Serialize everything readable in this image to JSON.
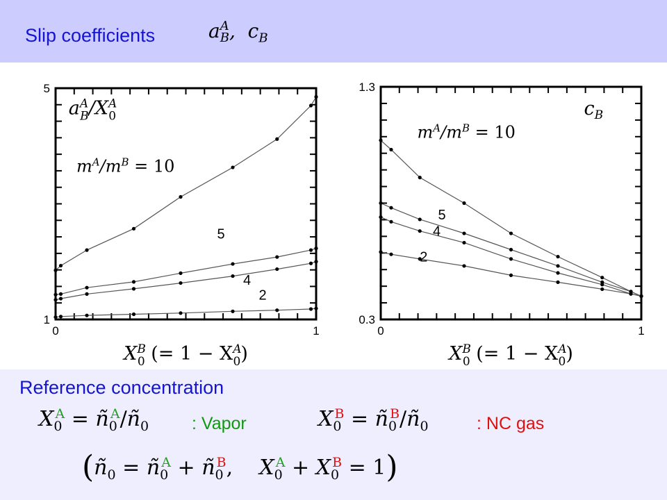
{
  "header": {
    "title": "Slip coefficients",
    "math": "a_B^A, c_B"
  },
  "chart_data": [
    {
      "type": "line",
      "label": "a_B^A / X_0^A",
      "xlabel": "X_0^B (= 1 − X_0^A)",
      "xlim": [
        0,
        1
      ],
      "ylim": [
        1,
        5
      ],
      "xticks": [
        0,
        1
      ],
      "yticks": [
        1,
        5
      ],
      "series": [
        {
          "name": "m^A/m^B = 10",
          "x": [
            0,
            0.02,
            0.12,
            0.3,
            0.48,
            0.68,
            0.85,
            0.98,
            1.0
          ],
          "y": [
            1.85,
            1.93,
            2.2,
            2.57,
            3.12,
            3.63,
            4.12,
            4.7,
            4.85
          ]
        },
        {
          "name": "5",
          "x": [
            0,
            0.02,
            0.12,
            0.3,
            0.48,
            0.68,
            0.85,
            0.98,
            1.0
          ],
          "y": [
            1.43,
            1.44,
            1.55,
            1.65,
            1.8,
            1.96,
            2.08,
            2.2,
            2.23
          ]
        },
        {
          "name": "4",
          "x": [
            0,
            0.02,
            0.12,
            0.3,
            0.48,
            0.68,
            0.85,
            0.98,
            1.0
          ],
          "y": [
            1.34,
            1.36,
            1.44,
            1.53,
            1.63,
            1.75,
            1.87,
            1.97,
            2.0
          ]
        },
        {
          "name": "2",
          "x": [
            0,
            0.02,
            0.12,
            0.3,
            0.48,
            0.68,
            0.85,
            0.98,
            1.0
          ],
          "y": [
            1.04,
            1.05,
            1.07,
            1.09,
            1.11,
            1.14,
            1.16,
            1.18,
            1.19
          ]
        }
      ]
    },
    {
      "type": "line",
      "label": "c_B",
      "xlabel": "X_0^B (= 1 − X_0^A)",
      "xlim": [
        0,
        1
      ],
      "ylim": [
        0.3,
        1.3
      ],
      "xticks": [
        0,
        1
      ],
      "yticks": [
        0.3,
        1.3
      ],
      "series": [
        {
          "name": "m^A/m^B = 10",
          "x": [
            0,
            0.04,
            0.15,
            0.32,
            0.5,
            0.68,
            0.85,
            0.96,
            1.0
          ],
          "y": [
            1.07,
            1.03,
            0.91,
            0.8,
            0.67,
            0.57,
            0.48,
            0.42,
            0.4
          ]
        },
        {
          "name": "5",
          "x": [
            0,
            0.04,
            0.15,
            0.32,
            0.5,
            0.68,
            0.85,
            0.96,
            1.0
          ],
          "y": [
            0.8,
            0.78,
            0.73,
            0.67,
            0.6,
            0.53,
            0.46,
            0.42,
            0.4
          ]
        },
        {
          "name": "4",
          "x": [
            0,
            0.04,
            0.15,
            0.32,
            0.5,
            0.68,
            0.85,
            0.96,
            1.0
          ],
          "y": [
            0.74,
            0.72,
            0.68,
            0.63,
            0.56,
            0.5,
            0.45,
            0.41,
            0.4
          ]
        },
        {
          "name": "2",
          "x": [
            0,
            0.04,
            0.15,
            0.32,
            0.5,
            0.68,
            0.85,
            0.96,
            1.0
          ],
          "y": [
            0.59,
            0.58,
            0.56,
            0.53,
            0.49,
            0.46,
            0.43,
            0.41,
            0.4
          ]
        }
      ]
    }
  ],
  "reference": {
    "title": "Reference concentration",
    "vapor_label": ": Vapor",
    "nc_label": ": NC gas"
  },
  "colors": {
    "header_bg": "#ccccff",
    "bottom_bg": "#eeeeff",
    "title_text": "#1515d0",
    "vapor": "#119911",
    "nc_gas": "#e01010"
  }
}
